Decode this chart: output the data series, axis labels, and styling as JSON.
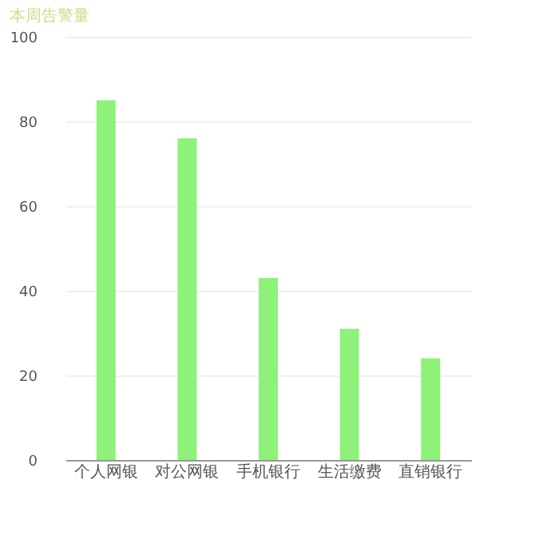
{
  "chart_data": {
    "type": "bar",
    "title": "本周告警量",
    "categories": [
      "个人网银",
      "对公网银",
      "手机银行",
      "生活缴费",
      "直销银行"
    ],
    "values": [
      85,
      76,
      43,
      31,
      24
    ],
    "color": "#8ef27a",
    "ylim": [
      0,
      100
    ],
    "yticks": [
      0,
      20,
      40,
      60,
      80,
      100
    ],
    "grid": "y"
  }
}
